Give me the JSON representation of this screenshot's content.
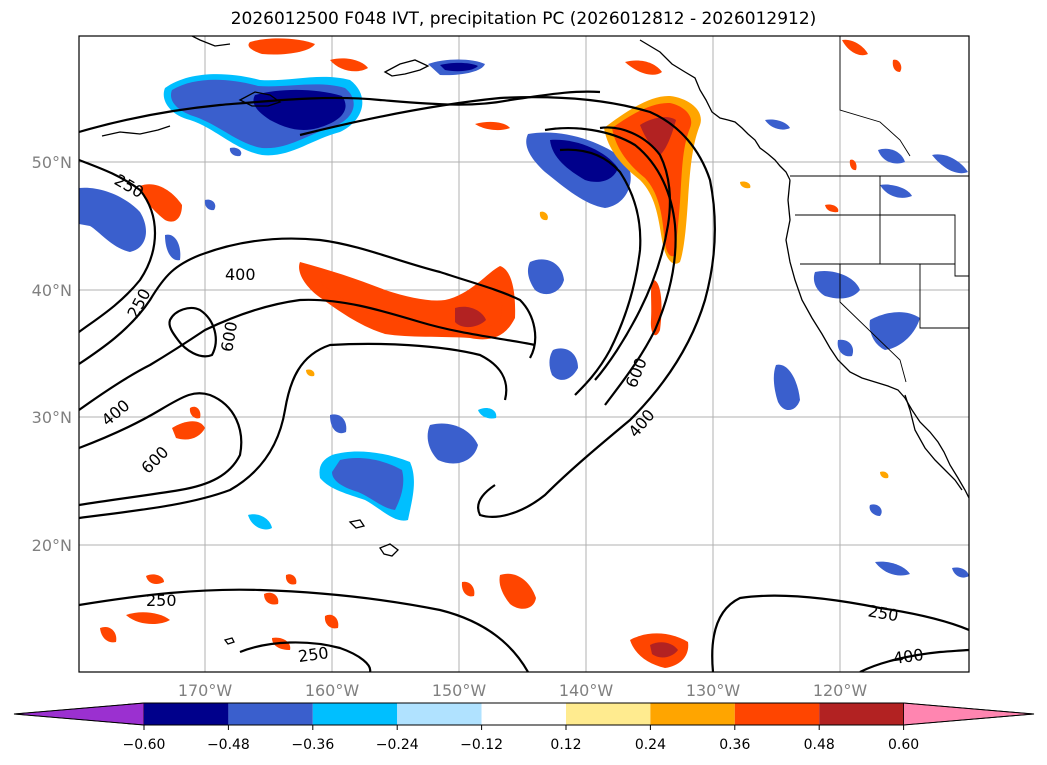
{
  "title": "2026012500 F048 IVT, precipitation PC (2026012812 - 2026012912)",
  "lat_labels": [
    "50°N",
    "40°N",
    "30°N",
    "20°N"
  ],
  "lon_labels": [
    "170°W",
    "160°W",
    "150°W",
    "140°W",
    "130°W",
    "120°W"
  ],
  "contour_labels": [
    "250",
    "250",
    "400",
    "600",
    "400",
    "600",
    "600",
    "400",
    "250",
    "250",
    "250",
    "400"
  ],
  "colorbar": {
    "ticks": [
      "−0.60",
      "−0.48",
      "−0.36",
      "−0.24",
      "−0.12",
      "0.12",
      "0.24",
      "0.36",
      "0.48",
      "0.60"
    ],
    "colors": [
      "#9b30d0",
      "#00008b",
      "#3a5fcd",
      "#00bfff",
      "#b0e2ff",
      "#ffffff",
      "#ffeb8f",
      "#ffa500",
      "#ff4500",
      "#b22222",
      "#ff85b0"
    ]
  },
  "colors": {
    "blue_light": "#00bfff",
    "blue_mid": "#3a5fcd",
    "blue_dark": "#00008b",
    "orange": "#ffa500",
    "red_orange": "#ff4500",
    "dark_red": "#b22222",
    "yellow": "#ffeb8f"
  }
}
